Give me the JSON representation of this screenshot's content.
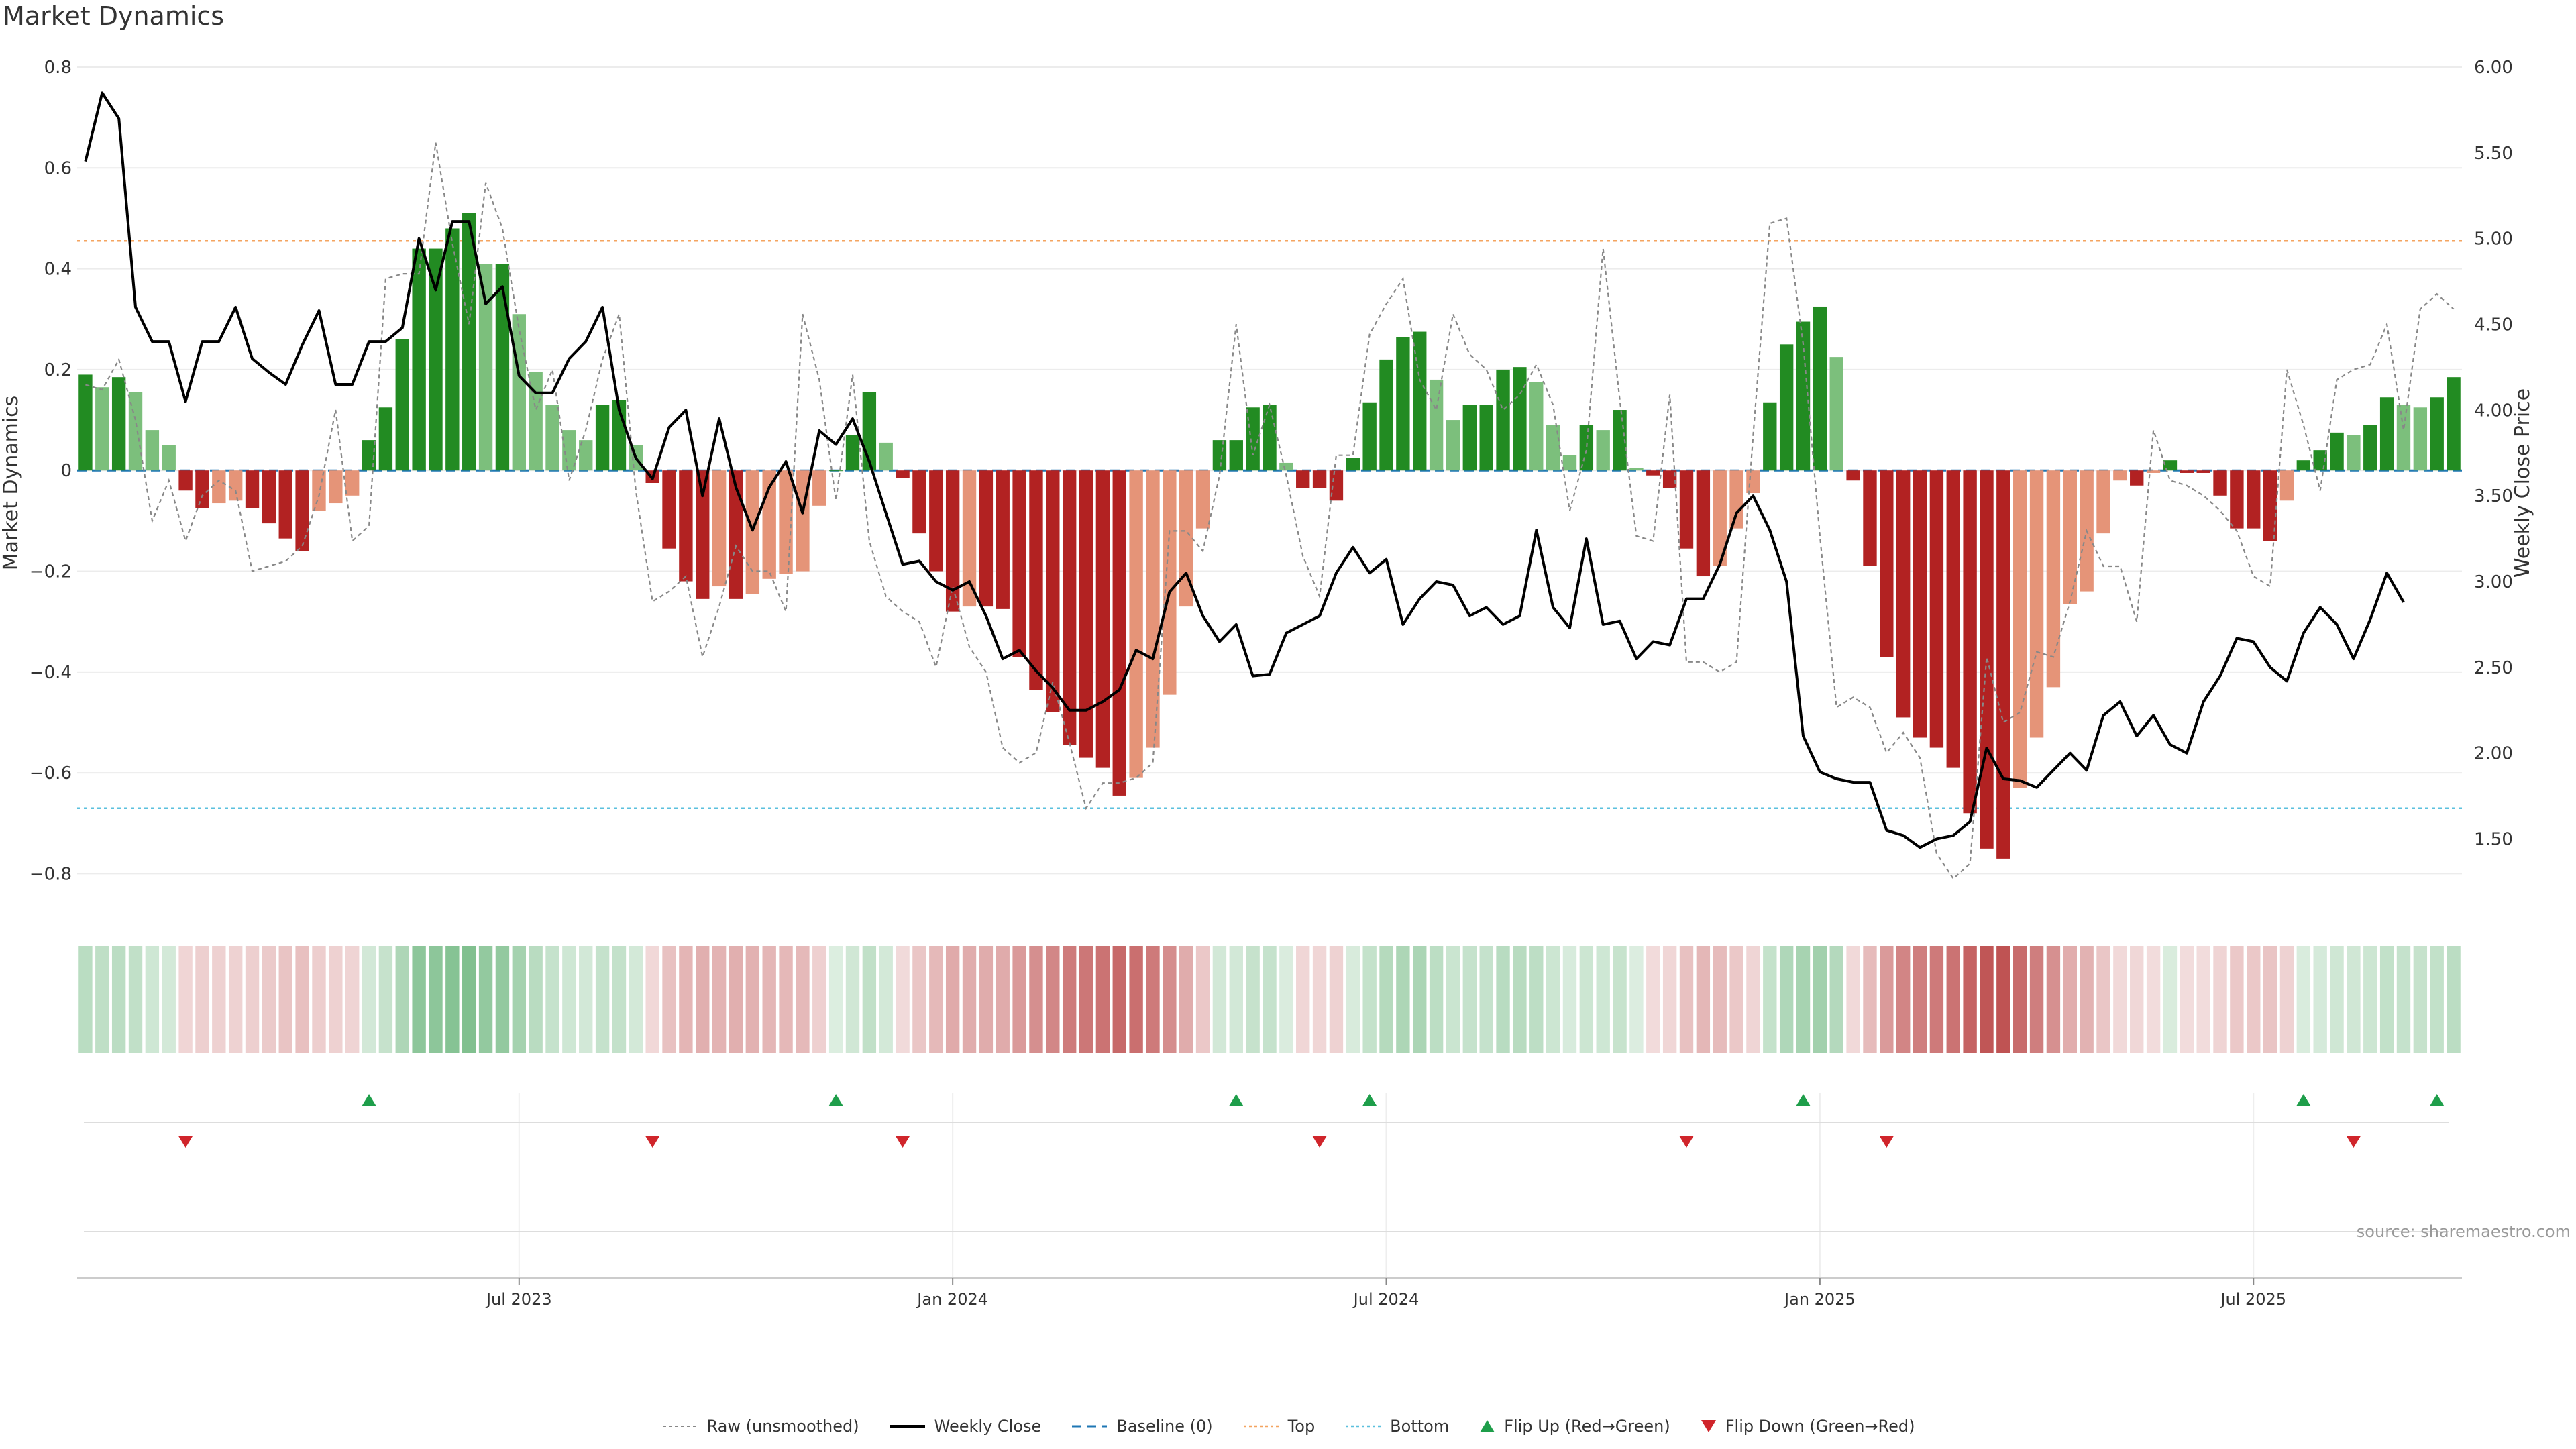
{
  "title": "Market Dynamics",
  "source": "source: sharemaestro.com",
  "colors": {
    "strong_green": "#228B22",
    "light_green": "#7CBF7C",
    "strong_red": "#B22222",
    "light_red": "#E59478",
    "top_line": "#F4A460",
    "bottom_line": "#5BC0DE",
    "baseline": "#1F77B4",
    "raw": "#888888",
    "close": "#000000",
    "flip_up": "#1E9E4A",
    "flip_down": "#D0252B"
  },
  "legend": [
    {
      "key": "raw",
      "label": "Raw (unsmoothed)"
    },
    {
      "key": "close",
      "label": "Weekly Close"
    },
    {
      "key": "baseline",
      "label": "Baseline (0)"
    },
    {
      "key": "top",
      "label": "Top"
    },
    {
      "key": "bottom",
      "label": "Bottom"
    },
    {
      "key": "flip_up",
      "label": "Flip Up (Red→Green)"
    },
    {
      "key": "flip_down",
      "label": "Flip Down (Green→Red)"
    }
  ],
  "chart_data": {
    "type": "bar",
    "title": "Market Dynamics",
    "ylabel": "Market Dynamics",
    "y2label": "Weekly Close Price",
    "ylim": [
      -0.85,
      0.8
    ],
    "y2lim": [
      1.15,
      6.0
    ],
    "yticks": [
      0.8,
      0.6,
      0.4,
      0.2,
      0,
      -0.2,
      -0.4,
      -0.6,
      -0.8
    ],
    "ytick_labels": [
      "0.8",
      "0.6",
      "0.4",
      "0.2",
      "0",
      "−0.2",
      "−0.4",
      "−0.6",
      "−0.8"
    ],
    "y2ticks": [
      6.0,
      5.5,
      5.0,
      4.5,
      4.0,
      3.5,
      3.0,
      2.5,
      2.0,
      1.5
    ],
    "y2tick_labels": [
      "6.00",
      "5.50",
      "5.00",
      "4.50",
      "4.00",
      "3.50",
      "3.00",
      "2.50",
      "2.00",
      "1.50"
    ],
    "x_start_week": -26,
    "x_weeks": 144,
    "xticks": [
      {
        "week": 0,
        "label": "Jul 2023"
      },
      {
        "week": 26,
        "label": "Jan 2024"
      },
      {
        "week": 52,
        "label": "Jul 2024"
      },
      {
        "week": 78,
        "label": "Jan 2025"
      },
      {
        "week": 104,
        "label": "Jul 2025"
      }
    ],
    "top_level": 0.455,
    "bottom_level": -0.67,
    "baseline": 0,
    "dynamics": [
      0.19,
      0.165,
      0.185,
      0.155,
      0.08,
      0.05,
      -0.04,
      -0.075,
      -0.065,
      -0.06,
      -0.075,
      -0.105,
      -0.135,
      -0.16,
      -0.08,
      -0.065,
      -0.05,
      0.06,
      0.125,
      0.26,
      0.44,
      0.44,
      0.48,
      0.51,
      0.41,
      0.41,
      0.31,
      0.195,
      0.13,
      0.08,
      0.06,
      0.13,
      0.14,
      0.05,
      -0.025,
      -0.155,
      -0.22,
      -0.255,
      -0.23,
      -0.255,
      -0.245,
      -0.215,
      -0.205,
      -0.2,
      -0.07,
      0.0,
      0.07,
      0.155,
      0.055,
      -0.015,
      -0.125,
      -0.2,
      -0.28,
      -0.27,
      -0.27,
      -0.275,
      -0.37,
      -0.435,
      -0.48,
      -0.545,
      -0.57,
      -0.59,
      -0.645,
      -0.61,
      -0.55,
      -0.445,
      -0.27,
      -0.115,
      0.06,
      0.06,
      0.125,
      0.13,
      0.015,
      -0.035,
      -0.035,
      -0.06,
      0.025,
      0.135,
      0.22,
      0.265,
      0.275,
      0.18,
      0.1,
      0.13,
      0.13,
      0.2,
      0.205,
      0.175,
      0.09,
      0.03,
      0.09,
      0.08,
      0.12,
      0.005,
      -0.01,
      -0.035,
      -0.155,
      -0.21,
      -0.19,
      -0.115,
      -0.045,
      0.135,
      0.25,
      0.295,
      0.325,
      0.225,
      -0.02,
      -0.19,
      -0.37,
      -0.49,
      -0.53,
      -0.55,
      -0.59,
      -0.68,
      -0.75,
      -0.77,
      -0.63,
      -0.53,
      -0.43,
      -0.265,
      -0.24,
      -0.125,
      -0.02,
      -0.03,
      -0.005,
      0.02,
      -0.005,
      -0.005,
      -0.05,
      -0.115,
      -0.115,
      -0.14,
      -0.06,
      0.02,
      0.04,
      0.075,
      0.07,
      0.09,
      0.145,
      0.13,
      0.125,
      0.145,
      0.185
    ],
    "raw": [
      0.17,
      0.16,
      0.22,
      0.1,
      -0.1,
      -0.02,
      -0.14,
      -0.05,
      -0.02,
      -0.04,
      -0.2,
      -0.19,
      -0.18,
      -0.15,
      -0.05,
      0.12,
      -0.14,
      -0.11,
      0.38,
      0.39,
      0.39,
      0.65,
      0.45,
      0.29,
      0.57,
      0.48,
      0.28,
      0.12,
      0.2,
      -0.02,
      0.08,
      0.22,
      0.31,
      -0.04,
      -0.26,
      -0.24,
      -0.21,
      -0.37,
      -0.27,
      -0.15,
      -0.2,
      -0.2,
      -0.28,
      0.31,
      0.18,
      -0.06,
      0.19,
      -0.14,
      -0.25,
      -0.28,
      -0.3,
      -0.39,
      -0.23,
      -0.35,
      -0.4,
      -0.55,
      -0.58,
      -0.56,
      -0.42,
      -0.54,
      -0.67,
      -0.62,
      -0.62,
      -0.61,
      -0.58,
      -0.12,
      -0.12,
      -0.16,
      -0.01,
      0.29,
      0.03,
      0.13,
      -0.01,
      -0.17,
      -0.25,
      0.03,
      0.03,
      0.27,
      0.33,
      0.38,
      0.18,
      0.12,
      0.31,
      0.23,
      0.2,
      0.12,
      0.15,
      0.21,
      0.13,
      -0.08,
      0.04,
      0.44,
      0.14,
      -0.13,
      -0.14,
      0.15,
      -0.38,
      -0.38,
      -0.4,
      -0.38,
      0.07,
      0.49,
      0.5,
      0.25,
      -0.13,
      -0.47,
      -0.45,
      -0.47,
      -0.56,
      -0.52,
      -0.57,
      -0.76,
      -0.81,
      -0.78,
      -0.37,
      -0.5,
      -0.48,
      -0.36,
      -0.37,
      -0.26,
      -0.12,
      -0.19,
      -0.19,
      -0.3,
      0.08,
      -0.02,
      -0.03,
      -0.05,
      -0.08,
      -0.12,
      -0.21,
      -0.23,
      0.2,
      0.09,
      -0.04,
      0.18,
      0.2,
      0.21,
      0.29,
      0.08,
      0.32,
      0.35,
      0.32
    ],
    "close": [
      5.45,
      5.85,
      5.7,
      4.6,
      4.4,
      4.4,
      4.05,
      4.4,
      4.4,
      4.6,
      4.3,
      4.22,
      4.15,
      4.38,
      4.58,
      4.15,
      4.15,
      4.4,
      4.4,
      4.48,
      5.0,
      4.7,
      5.1,
      5.1,
      4.62,
      4.72,
      4.2,
      4.1,
      4.1,
      4.3,
      4.4,
      4.6,
      4.0,
      3.72,
      3.6,
      3.9,
      4.0,
      3.5,
      3.95,
      3.55,
      3.3,
      3.55,
      3.7,
      3.4,
      3.88,
      3.8,
      3.95,
      3.7,
      3.4,
      3.1,
      3.12,
      3.0,
      2.95,
      3.0,
      2.8,
      2.55,
      2.6,
      2.48,
      2.38,
      2.25,
      2.25,
      2.3,
      2.37,
      2.6,
      2.55,
      2.94,
      3.05,
      2.8,
      2.65,
      2.75,
      2.45,
      2.46,
      2.7,
      2.75,
      2.8,
      3.05,
      3.2,
      3.05,
      3.13,
      2.75,
      2.9,
      3.0,
      2.98,
      2.8,
      2.85,
      2.75,
      2.8,
      3.3,
      2.85,
      2.73,
      3.25,
      2.75,
      2.77,
      2.55,
      2.65,
      2.63,
      2.9,
      2.9,
      3.1,
      3.4,
      3.5,
      3.3,
      3.0,
      2.1,
      1.89,
      1.85,
      1.83,
      1.83,
      1.55,
      1.52,
      1.45,
      1.5,
      1.52,
      1.6,
      2.03,
      1.85,
      1.84,
      1.8,
      1.9,
      2.0,
      1.9,
      2.22,
      2.3,
      2.1,
      2.22,
      2.05,
      2.0,
      2.3,
      2.45,
      2.67,
      2.65,
      2.5,
      2.42,
      2.7,
      2.85,
      2.75,
      2.55,
      2.78,
      3.05,
      2.88
    ],
    "flip_up_weeks": [
      -9,
      19,
      43,
      51,
      77,
      107,
      115
    ],
    "flip_down_weeks": [
      -20,
      8,
      23,
      48,
      70,
      82,
      110
    ]
  }
}
